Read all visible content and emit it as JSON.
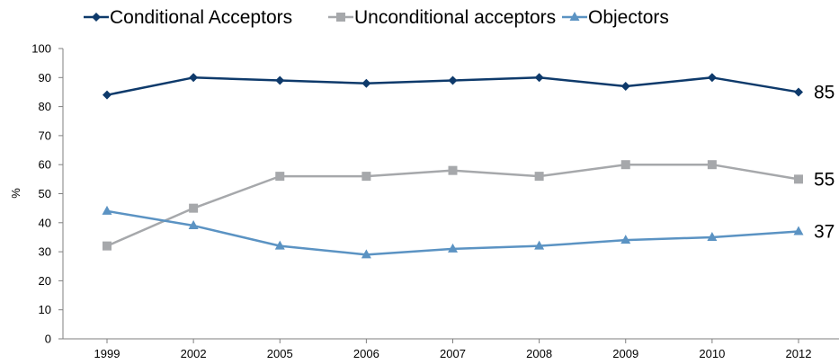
{
  "chart_data": {
    "type": "line",
    "categories": [
      "1999",
      "2002",
      "2005",
      "2006",
      "2007",
      "2008",
      "2009",
      "2010",
      "2012"
    ],
    "ylabel": "%",
    "ylim": [
      0,
      100
    ],
    "yticks": [
      "0",
      "10",
      "20",
      "30",
      "40",
      "50",
      "60",
      "70",
      "80",
      "90",
      "100"
    ],
    "grid": false,
    "legend_position": "top",
    "series": [
      {
        "name": "Conditional Acceptors",
        "values": [
          84,
          90,
          89,
          88,
          89,
          90,
          87,
          90,
          85
        ],
        "color": "#0e3a6b",
        "marker": "diamond",
        "end_label": "85"
      },
      {
        "name": "Unconditional acceptors",
        "values": [
          32,
          45,
          56,
          56,
          58,
          56,
          60,
          60,
          55
        ],
        "color": "#a6a8ab",
        "marker": "square",
        "end_label": "55"
      },
      {
        "name": "Objectors",
        "values": [
          44,
          39,
          32,
          29,
          31,
          32,
          34,
          35,
          37
        ],
        "color": "#5b93c3",
        "marker": "triangle",
        "end_label": "37"
      }
    ]
  }
}
